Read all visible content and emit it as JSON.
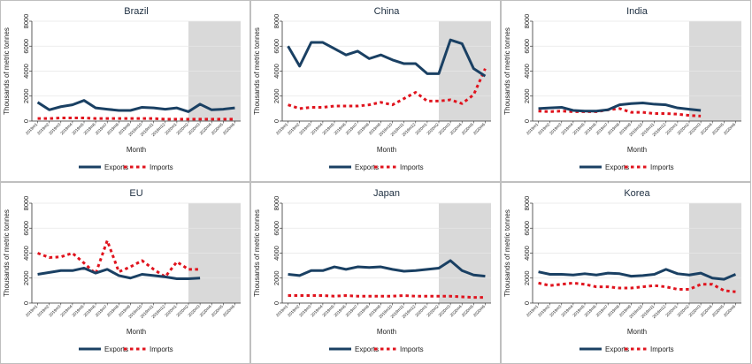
{
  "colors": {
    "exports": "#1a4063",
    "imports": "#e0141e",
    "shade": "#d9d9d9",
    "grid": "#e6e6e6",
    "frame": "#bfbfbf"
  },
  "chart_data": [
    {
      "type": "line",
      "title": "Brazil",
      "xlabel": "Month",
      "ylabel": "Thousands of metric tonnes",
      "ylim": [
        0,
        8000
      ],
      "yticks": [
        "0",
        "2000",
        "4000",
        "6000",
        "8000"
      ],
      "categories": [
        "2019m1",
        "2019m2",
        "2019m3",
        "2019m4",
        "2019m5",
        "2019m6",
        "2019m7",
        "2019m8",
        "2019m9",
        "2019m10",
        "2019m11",
        "2019m12",
        "2020m1",
        "2020m2",
        "2020m3",
        "2020m4",
        "2020m5",
        "2020m6"
      ],
      "shaded_from": "2020m2",
      "grid": true,
      "legend_position": "bottom",
      "series": [
        {
          "name": "Exports",
          "values": [
            1500,
            900,
            1150,
            1300,
            1650,
            1050,
            950,
            850,
            850,
            1100,
            1050,
            950,
            1050,
            750,
            1350,
            900,
            950,
            1050
          ]
        },
        {
          "name": "Imports",
          "values": [
            200,
            200,
            250,
            250,
            250,
            200,
            200,
            200,
            200,
            200,
            200,
            150,
            150,
            150,
            150,
            150,
            150,
            150
          ]
        }
      ]
    },
    {
      "type": "line",
      "title": "China",
      "xlabel": "Month",
      "ylabel": "Thousands of metric tonnes",
      "ylim": [
        0,
        8000
      ],
      "yticks": [
        "0",
        "2000",
        "4000",
        "6000",
        "8000"
      ],
      "categories": [
        "2019m1",
        "2019m2",
        "2019m3",
        "2019m4",
        "2019m5",
        "2019m6",
        "2019m7",
        "2019m8",
        "2019m9",
        "2019m10",
        "2019m11",
        "2019m12",
        "2020m1",
        "2020m2",
        "2020m3",
        "2020m4",
        "2020m5",
        "2020m6"
      ],
      "shaded_from": "2020m2",
      "grid": true,
      "legend_position": "bottom",
      "series": [
        {
          "name": "Exports",
          "values": [
            6000,
            4400,
            6300,
            6300,
            5800,
            5300,
            5600,
            5000,
            5300,
            4900,
            4600,
            4600,
            3800,
            3800,
            6500,
            6200,
            4200,
            3600
          ]
        },
        {
          "name": "Imports",
          "values": [
            1300,
            1000,
            1100,
            1100,
            1200,
            1200,
            1200,
            1300,
            1500,
            1300,
            1800,
            2300,
            1600,
            1600,
            1700,
            1400,
            2100,
            4200
          ]
        }
      ]
    },
    {
      "type": "line",
      "title": "India",
      "xlabel": "Month",
      "ylabel": "Thousands of metric tonnes",
      "ylim": [
        0,
        8000
      ],
      "yticks": [
        "0",
        "2000",
        "4000",
        "6000",
        "8000"
      ],
      "categories": [
        "2019m1",
        "2019m2",
        "2019m3",
        "2019m4",
        "2019m5",
        "2019m6",
        "2019m7",
        "2019m8",
        "2019m9",
        "2019m10",
        "2019m11",
        "2019m12",
        "2020m1",
        "2020m2",
        "2020m3",
        "2020m4",
        "2020m5",
        "2020m6"
      ],
      "shaded_from": "2020m2",
      "grid": true,
      "legend_position": "bottom",
      "series": [
        {
          "name": "Exports",
          "values": [
            1000,
            1050,
            1100,
            850,
            800,
            800,
            900,
            1300,
            1400,
            1450,
            1350,
            1300,
            1050,
            950,
            850,
            null,
            null,
            null
          ]
        },
        {
          "name": "Imports",
          "values": [
            800,
            750,
            800,
            750,
            750,
            750,
            900,
            1000,
            700,
            700,
            600,
            600,
            550,
            450,
            400,
            null,
            null,
            null
          ]
        }
      ]
    },
    {
      "type": "line",
      "title": "EU",
      "xlabel": "Month",
      "ylabel": "Thousands of metric tonnes",
      "ylim": [
        0,
        8000
      ],
      "yticks": [
        "0",
        "2000",
        "4000",
        "6000",
        "8000"
      ],
      "categories": [
        "2019m1",
        "2019m2",
        "2019m3",
        "2019m4",
        "2019m5",
        "2019m6",
        "2019m7",
        "2019m8",
        "2019m9",
        "2019m10",
        "2019m11",
        "2019m12",
        "2020m1",
        "2020m2",
        "2020m3",
        "2020m4",
        "2020m5",
        "2020m6"
      ],
      "shaded_from": "2020m2",
      "grid": true,
      "legend_position": "bottom",
      "series": [
        {
          "name": "Exports",
          "values": [
            2300,
            2450,
            2600,
            2600,
            2800,
            2400,
            2700,
            2200,
            2000,
            2300,
            2200,
            2100,
            1950,
            1950,
            2000,
            null,
            null,
            null
          ]
        },
        {
          "name": "Imports",
          "values": [
            4000,
            3650,
            3700,
            4000,
            3200,
            2350,
            5000,
            2500,
            2900,
            3400,
            2700,
            2100,
            3300,
            2700,
            2700,
            null,
            null,
            null
          ]
        }
      ]
    },
    {
      "type": "line",
      "title": "Japan",
      "xlabel": "Month",
      "ylabel": "Thousands of metric tonnes",
      "ylim": [
        0,
        8000
      ],
      "yticks": [
        "0",
        "2000",
        "4000",
        "6000",
        "8000"
      ],
      "categories": [
        "2019m1",
        "2019m2",
        "2019m3",
        "2019m4",
        "2019m5",
        "2019m6",
        "2019m7",
        "2019m8",
        "2019m9",
        "2019m10",
        "2019m11",
        "2019m12",
        "2020m1",
        "2020m2",
        "2020m3",
        "2020m4",
        "2020m5",
        "2020m6"
      ],
      "shaded_from": "2020m2",
      "grid": true,
      "legend_position": "bottom",
      "series": [
        {
          "name": "Exports",
          "values": [
            2300,
            2200,
            2600,
            2600,
            2900,
            2700,
            2900,
            2850,
            2900,
            2700,
            2550,
            2600,
            2700,
            2800,
            3400,
            2600,
            2250,
            2150
          ]
        },
        {
          "name": "Imports",
          "values": [
            600,
            600,
            600,
            600,
            550,
            600,
            550,
            550,
            550,
            550,
            600,
            550,
            550,
            550,
            550,
            500,
            450,
            450
          ]
        }
      ]
    },
    {
      "type": "line",
      "title": "Korea",
      "xlabel": "Month",
      "ylabel": "Thousands of metric tonnes",
      "ylim": [
        0,
        8000
      ],
      "yticks": [
        "0",
        "2000",
        "4000",
        "6000",
        "8000"
      ],
      "categories": [
        "2019m1",
        "2019m2",
        "2019m3",
        "2019m4",
        "2019m5",
        "2019m6",
        "2019m7",
        "2019m8",
        "2019m9",
        "2019m10",
        "2019m11",
        "2019m12",
        "2020m1",
        "2020m2",
        "2020m3",
        "2020m4",
        "2020m5",
        "2020m6"
      ],
      "shaded_from": "2020m2",
      "grid": true,
      "legend_position": "bottom",
      "series": [
        {
          "name": "Exports",
          "values": [
            2500,
            2300,
            2300,
            2250,
            2350,
            2250,
            2400,
            2350,
            2150,
            2200,
            2300,
            2700,
            2350,
            2250,
            2400,
            2000,
            1900,
            2300
          ]
        },
        {
          "name": "Imports",
          "values": [
            1600,
            1400,
            1500,
            1600,
            1500,
            1300,
            1300,
            1200,
            1200,
            1300,
            1400,
            1300,
            1100,
            1100,
            1500,
            1500,
            1000,
            900
          ]
        }
      ]
    }
  ]
}
